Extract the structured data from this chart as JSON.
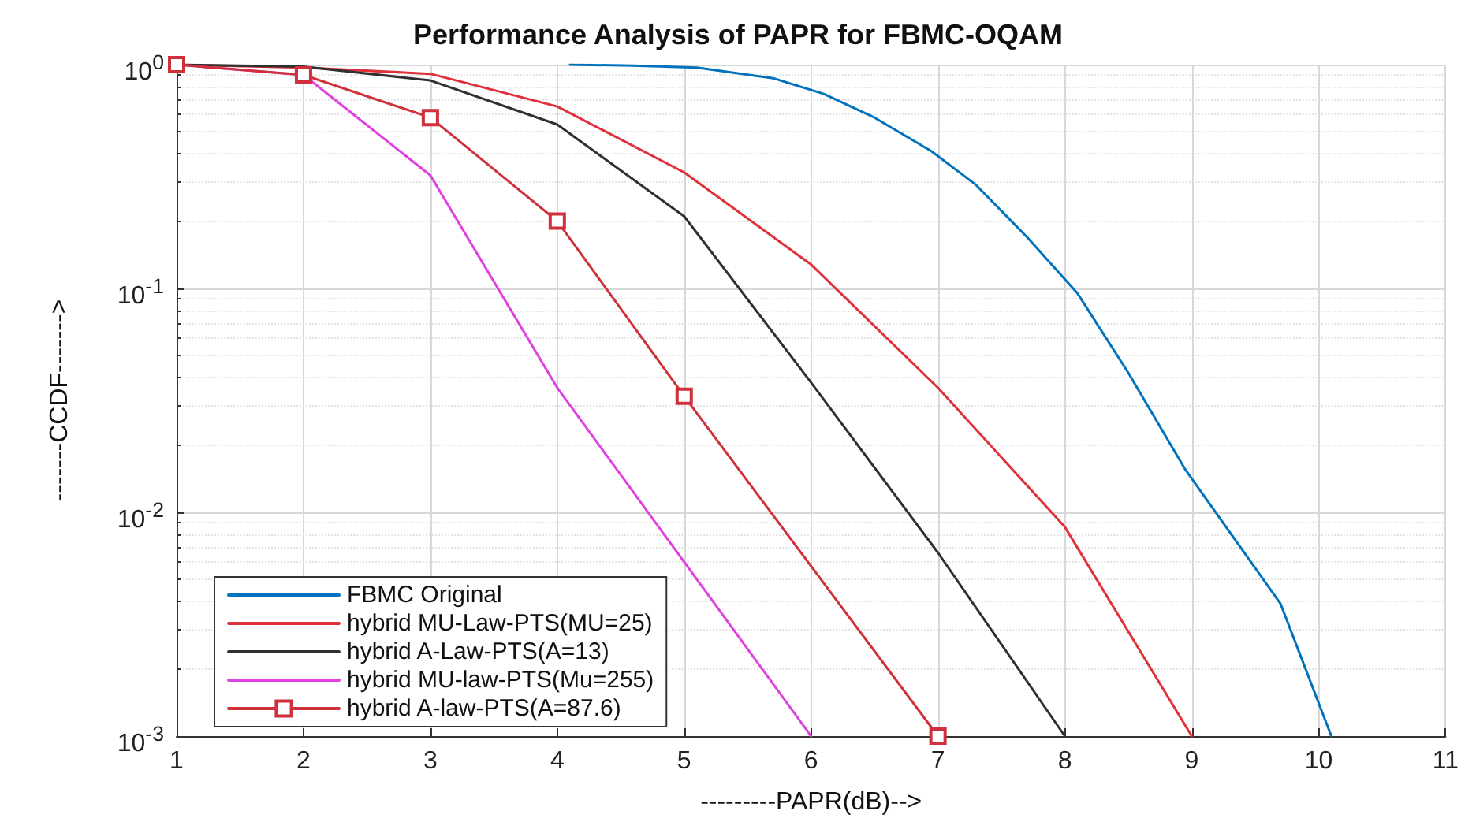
{
  "chart_data": {
    "type": "line",
    "title": "Performance Analysis of PAPR for FBMC-OQAM",
    "xlabel": "---------PAPR(dB)-->",
    "ylabel": "-------CCDF------->",
    "log": "y",
    "grid": true,
    "legend": "bottom left",
    "line_style": "solid",
    "xlim": [
      1,
      11
    ],
    "xticks": [
      1,
      2,
      3,
      4,
      5,
      6,
      7,
      8,
      9,
      10,
      11
    ],
    "ylim": [
      0.001,
      1
    ],
    "yticks": [
      {
        "value": 0.001,
        "label": "10$^{-3}$"
      },
      {
        "value": 0.01,
        "label": "10$^{-2}$"
      },
      {
        "value": 0.1,
        "label": "10$^{-1}$"
      },
      {
        "value": 1,
        "label": "10$^{0}$"
      }
    ],
    "series": [
      {
        "name": "FBMC Original",
        "color": "#0072bd",
        "marker": "none",
        "x": [
          4.1,
          4.6,
          5.1,
          5.7,
          6.1,
          6.5,
          6.95,
          7.3,
          7.7,
          8.1,
          8.5,
          8.95,
          9.7,
          10.1
        ],
        "values": [
          1.0,
          0.99,
          0.97,
          0.87,
          0.74,
          0.58,
          0.41,
          0.29,
          0.17,
          0.095,
          0.042,
          0.0155,
          0.0039,
          0.001
        ]
      },
      {
        "name": "hybrid MU-Law-PTS(MU=25)",
        "color": "#e0303a",
        "marker": "none",
        "x": [
          1,
          2,
          3,
          4,
          5,
          6,
          7,
          8,
          9
        ],
        "values": [
          1.0,
          0.97,
          0.91,
          0.65,
          0.33,
          0.128,
          0.036,
          0.0086,
          0.001
        ]
      },
      {
        "name": "hybrid A-Law-PTS(A=13)",
        "color": "#303030",
        "marker": "none",
        "x": [
          1,
          2,
          3,
          4,
          5,
          6,
          7,
          8
        ],
        "values": [
          1.0,
          0.98,
          0.85,
          0.54,
          0.21,
          0.038,
          0.0066,
          0.001
        ]
      },
      {
        "name": "hybrid MU-law-PTS(Mu=255)",
        "color": "#e040e0",
        "marker": "none",
        "x": [
          1,
          2,
          3,
          4,
          5,
          6
        ],
        "values": [
          1.0,
          0.9,
          0.32,
          0.036,
          null,
          0.001
        ]
      },
      {
        "name": "hybrid A-law-PTS(A=87.6)",
        "color": "#d0303a",
        "marker": "square",
        "x": [
          1,
          2,
          3,
          4,
          5,
          6,
          7
        ],
        "values": [
          1.0,
          0.9,
          0.58,
          0.2,
          0.033,
          null,
          0.001
        ]
      }
    ]
  }
}
